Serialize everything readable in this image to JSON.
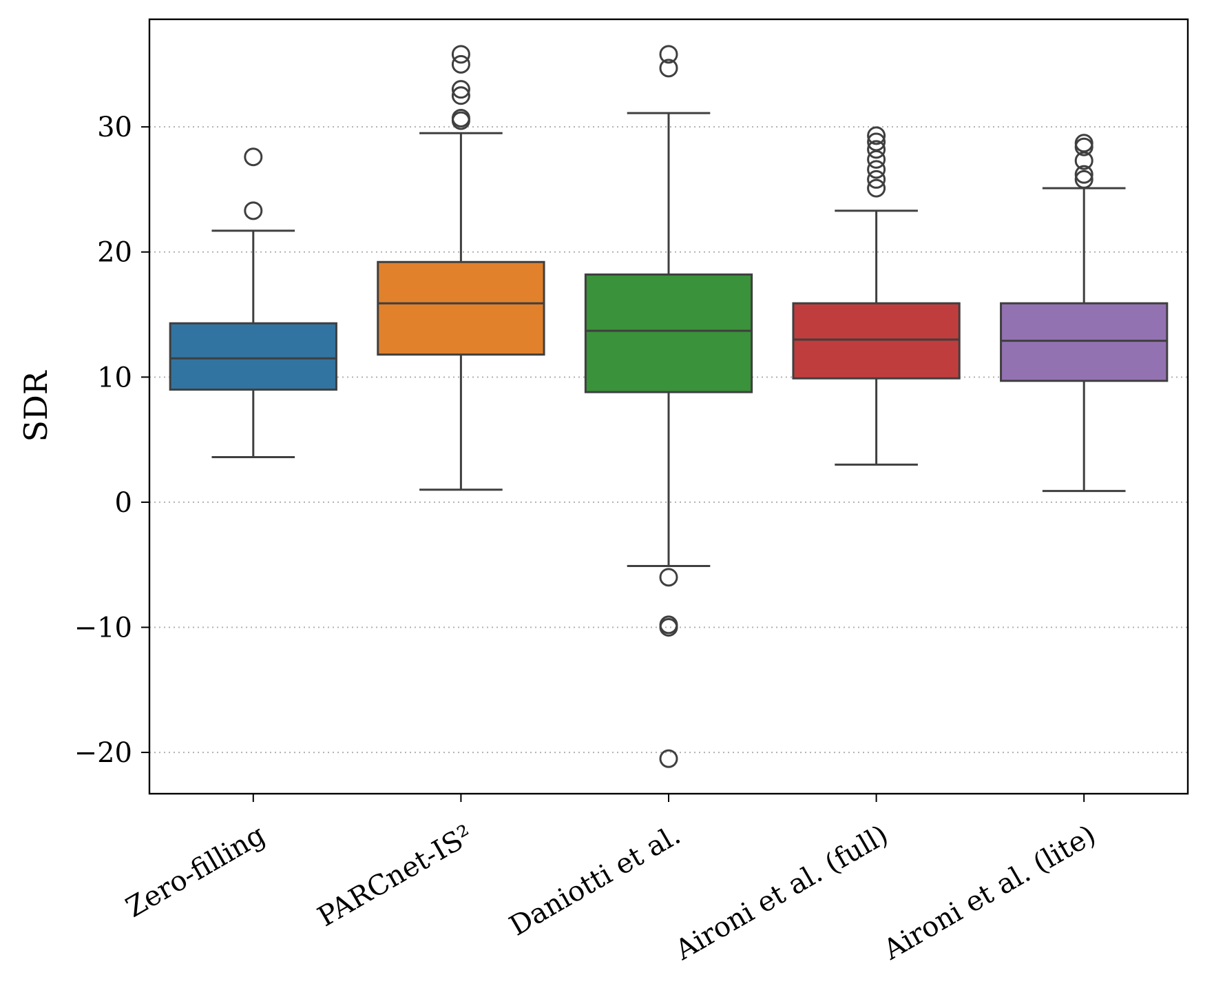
{
  "chart_data": {
    "type": "box",
    "title": "",
    "xlabel": "",
    "ylabel": "SDR",
    "ylim": [
      -23.3,
      38.6
    ],
    "yticks": [
      -20,
      -10,
      0,
      10,
      20,
      30
    ],
    "ytick_labels": [
      "−20",
      "−10",
      "0",
      "10",
      "20",
      "30"
    ],
    "grid": "horizontal dotted",
    "categories": [
      "Zero-filling",
      "PARCnet-IS²",
      "Daniotti et al.",
      "Aironi et al. (full)",
      "Aironi et al. (lite)"
    ],
    "series": [
      {
        "name": "Zero-filling",
        "color": "#3274a1",
        "whisker_low": 3.6,
        "q1": 9.0,
        "median": 11.5,
        "q3": 14.3,
        "whisker_high": 21.7,
        "outliers": [
          23.3,
          27.6
        ]
      },
      {
        "name": "PARCnet-IS²",
        "color": "#e1812c",
        "whisker_low": 1.0,
        "q1": 11.8,
        "median": 15.9,
        "q3": 19.2,
        "whisker_high": 29.5,
        "outliers": [
          30.5,
          30.7,
          32.5,
          33.0,
          35.0,
          35.8
        ]
      },
      {
        "name": "Daniotti et al.",
        "color": "#3a923a",
        "whisker_low": -5.1,
        "q1": 8.8,
        "median": 13.7,
        "q3": 18.2,
        "whisker_high": 31.1,
        "outliers": [
          34.7,
          35.8,
          -6.0,
          -9.8,
          -10.0,
          -20.5
        ]
      },
      {
        "name": "Aironi et al. (full)",
        "color": "#c03d3e",
        "whisker_low": 3.0,
        "q1": 9.9,
        "median": 13.0,
        "q3": 15.9,
        "whisker_high": 23.3,
        "outliers": [
          25.1,
          25.8,
          26.6,
          27.4,
          28.2,
          28.8,
          29.3
        ]
      },
      {
        "name": "Aironi et al. (lite)",
        "color": "#9372b2",
        "whisker_low": 0.9,
        "q1": 9.7,
        "median": 12.9,
        "q3": 15.9,
        "whisker_high": 25.1,
        "outliers": [
          25.8,
          26.2,
          27.3,
          28.4,
          28.7
        ]
      }
    ]
  }
}
